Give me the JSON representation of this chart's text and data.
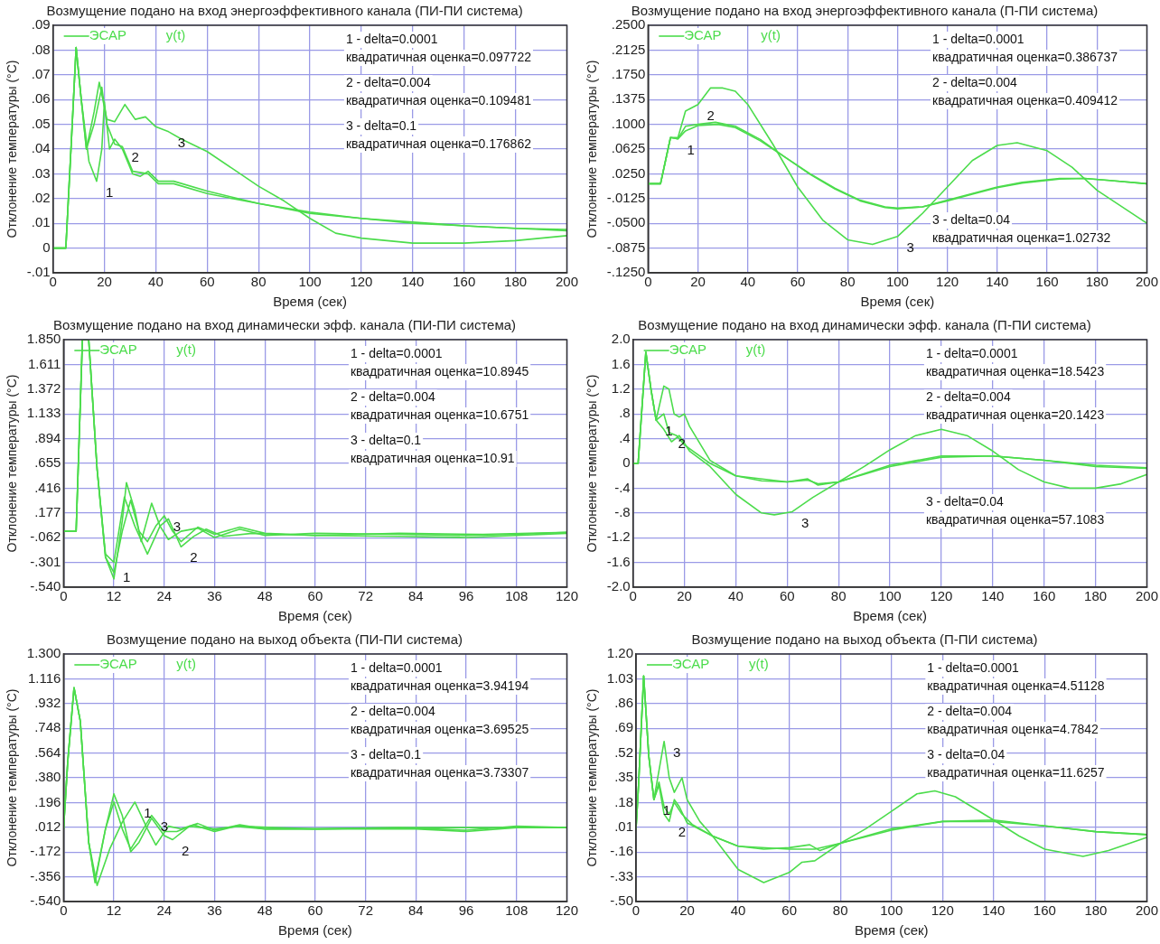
{
  "chart_data": [
    {
      "type": "line",
      "title": "Возмущение подано на вход энергоэффективного канала (ПИ-ПИ система)",
      "xlabel": "Время (сек)",
      "ylabel": "Отклонение температуры (°C)",
      "grid": true,
      "xlim": [
        0,
        200
      ],
      "xticks": [
        0,
        20,
        40,
        60,
        80,
        100,
        120,
        140,
        160,
        180,
        200
      ],
      "ylim": [
        -0.01,
        0.09
      ],
      "yticks": [
        {
          "value": -0.01,
          "label": "-.01"
        },
        0,
        {
          "value": 0.01,
          "label": ".01"
        },
        {
          "value": 0.02,
          "label": ".02"
        },
        {
          "value": 0.03,
          "label": ".03"
        },
        {
          "value": 0.04,
          "label": ".04"
        },
        {
          "value": 0.05,
          "label": ".05"
        },
        {
          "value": 0.06,
          "label": ".06"
        },
        {
          "value": 0.07,
          "label": ".07"
        },
        {
          "value": 0.08,
          "label": ".08"
        },
        {
          "value": 0.09,
          "label": ".09"
        }
      ],
      "series": [
        {
          "color": "#4cdc4c",
          "x": [
            0,
            5,
            7,
            9,
            11,
            14,
            17,
            19,
            20,
            22,
            24,
            27,
            31,
            34,
            37,
            41,
            47,
            60,
            80,
            100,
            120,
            140,
            160,
            180,
            200
          ],
          "values": [
            0,
            0,
            0.04,
            0.081,
            0.06,
            0.035,
            0.027,
            0.04,
            0.059,
            0.04,
            0.044,
            0.04,
            0.03,
            0.029,
            0.031,
            0.027,
            0.027,
            0.023,
            0.018,
            0.0145,
            0.012,
            0.0105,
            0.009,
            0.008,
            0.0075
          ]
        },
        {
          "color": "#4cdc4c",
          "x": [
            0,
            5,
            7,
            9,
            11,
            13,
            16,
            19,
            21,
            24,
            27,
            31,
            37,
            41,
            47,
            60,
            80,
            100,
            120,
            140,
            160,
            180,
            200
          ],
          "values": [
            0,
            0,
            0.04,
            0.081,
            0.06,
            0.04,
            0.05,
            0.065,
            0.05,
            0.042,
            0.041,
            0.031,
            0.03,
            0.026,
            0.026,
            0.022,
            0.018,
            0.014,
            0.012,
            0.01,
            0.009,
            0.008,
            0.007
          ]
        },
        {
          "color": "#4cdc4c",
          "x": [
            0,
            5,
            7,
            9,
            11,
            13,
            16,
            18,
            21,
            24,
            28,
            32,
            36,
            40,
            45,
            50,
            60,
            70,
            80,
            90,
            100,
            110,
            120,
            140,
            160,
            180,
            200
          ],
          "values": [
            0,
            0,
            0.04,
            0.081,
            0.06,
            0.04,
            0.055,
            0.067,
            0.052,
            0.051,
            0.058,
            0.052,
            0.053,
            0.049,
            0.047,
            0.044,
            0.039,
            0.032,
            0.025,
            0.019,
            0.012,
            0.006,
            0.004,
            0.002,
            0.002,
            0.003,
            0.005
          ]
        }
      ],
      "annotations": [
        "ЭСАР",
        "y(t)",
        "1 - delta=0.0001",
        "квадратичная оценка=0.097722",
        "2 - delta=0.004",
        "квадратичная оценка=0.109481",
        "3 - delta=0.1",
        "квадратичная оценка=0.176862",
        {
          "text": "1",
          "x": 17,
          "y": 0.027
        },
        {
          "text": "2",
          "x": 27,
          "y": 0.041
        },
        {
          "text": "3",
          "x": 45,
          "y": 0.047
        }
      ]
    },
    {
      "type": "line",
      "title": "Возмущение подано на вход энергоэффективного канала (П-ПИ система)",
      "xlabel": "Время (сек)",
      "ylabel": "Отклонение температуры (°C)",
      "grid": true,
      "xlim": [
        0,
        200
      ],
      "xticks": [
        0,
        20,
        40,
        60,
        80,
        100,
        120,
        140,
        160,
        180,
        200
      ],
      "ylim": [
        -0.125,
        0.25
      ],
      "yticks": [
        {
          "value": -0.125,
          "label": "-.1250"
        },
        {
          "value": -0.0875,
          "label": "-.0875"
        },
        {
          "value": -0.05,
          "label": "-.0500"
        },
        {
          "value": -0.0125,
          "label": "-.0125"
        },
        {
          "value": 0.025,
          "label": ".0250"
        },
        {
          "value": 0.0625,
          "label": ".0625"
        },
        {
          "value": 0.1,
          "label": ".1000"
        },
        {
          "value": 0.1375,
          "label": ".1375"
        },
        {
          "value": 0.175,
          "label": ".1750"
        },
        {
          "value": 0.2125,
          "label": ".2125"
        },
        {
          "value": 0.25,
          "label": ".2500"
        }
      ],
      "series": [
        {
          "color": "#4cdc4c",
          "x": [
            0,
            5,
            9,
            12,
            15,
            20,
            28,
            35,
            45,
            55,
            65,
            75,
            85,
            95,
            100,
            110,
            120,
            130,
            140,
            150,
            165,
            175,
            185,
            200
          ],
          "values": [
            0.01,
            0.01,
            0.08,
            0.078,
            0.09,
            0.098,
            0.1,
            0.095,
            0.075,
            0.05,
            0.025,
            0.003,
            -0.015,
            -0.025,
            -0.027,
            -0.025,
            -0.015,
            -0.005,
            0.005,
            0.012,
            0.018,
            0.018,
            0.015,
            0.01
          ]
        },
        {
          "color": "#4cdc4c",
          "x": [
            0,
            5,
            9,
            12,
            15,
            20,
            27,
            35,
            45,
            55,
            65,
            75,
            85,
            95,
            100,
            110,
            120,
            130,
            140,
            150,
            165,
            175,
            185,
            200
          ],
          "values": [
            0.01,
            0.01,
            0.08,
            0.078,
            0.097,
            0.1,
            0.103,
            0.097,
            0.077,
            0.05,
            0.024,
            0.002,
            -0.016,
            -0.026,
            -0.028,
            -0.025,
            -0.016,
            -0.006,
            0.004,
            0.011,
            0.017,
            0.018,
            0.015,
            0.01
          ]
        },
        {
          "color": "#4cdc4c",
          "x": [
            0,
            5,
            9,
            12,
            15,
            20,
            25,
            30,
            35,
            40,
            50,
            60,
            70,
            80,
            90,
            100,
            110,
            120,
            130,
            140,
            148,
            160,
            170,
            180,
            190,
            200
          ],
          "values": [
            0.01,
            0.01,
            0.08,
            0.08,
            0.12,
            0.13,
            0.155,
            0.155,
            0.15,
            0.13,
            0.07,
            0.005,
            -0.045,
            -0.075,
            -0.082,
            -0.07,
            -0.035,
            0.005,
            0.045,
            0.068,
            0.072,
            0.06,
            0.035,
            0,
            -0.025,
            -0.05
          ]
        }
      ],
      "annotations": [
        "ЭСАР",
        "y(t)",
        "1 - delta=0.0001",
        "квадратичная оценка=0.386737",
        "2 - delta=0.004",
        "квадратичная оценка=0.409412",
        "3 - delta=0.04",
        "квадратичная оценка=1.02732",
        {
          "text": "1",
          "x": 12,
          "y": 0.078
        },
        {
          "text": "2",
          "x": 20,
          "y": 0.13
        },
        {
          "text": "3",
          "x": 100,
          "y": -0.07
        }
      ]
    },
    {
      "type": "line",
      "title": "Возмущение подано на вход динамически эфф. канала (ПИ-ПИ система)",
      "xlabel": "Время (сек)",
      "ylabel": "Отклонение температуры (°C)",
      "grid": true,
      "xlim": [
        0,
        120
      ],
      "xticks": [
        0,
        12,
        24,
        36,
        48,
        60,
        72,
        84,
        96,
        108,
        120
      ],
      "ylim": [
        -0.54,
        1.85
      ],
      "yticks": [
        {
          "value": -0.54,
          "label": "-.540"
        },
        {
          "value": -0.301,
          "label": "-.301"
        },
        {
          "value": -0.062,
          "label": "-.062"
        },
        {
          "value": 0.177,
          "label": ".177"
        },
        {
          "value": 0.416,
          "label": ".416"
        },
        {
          "value": 0.655,
          "label": ".655"
        },
        {
          "value": 0.894,
          "label": ".894"
        },
        {
          "value": 1.133,
          "label": "1.133"
        },
        {
          "value": 1.372,
          "label": "1.372"
        },
        {
          "value": 1.611,
          "label": "1.611"
        },
        {
          "value": 1.85,
          "label": "1.850"
        }
      ],
      "series": [
        {
          "color": "#4cdc4c",
          "x": [
            0,
            3,
            4.5,
            6,
            8,
            10,
            12,
            14,
            15,
            17,
            18.5,
            21,
            23,
            25,
            28,
            32,
            36,
            42,
            48,
            60,
            80,
            96,
            108,
            120
          ],
          "values": [
            0,
            0,
            1.85,
            1.85,
            0.6,
            -0.25,
            -0.46,
            0.1,
            0.47,
            0.2,
            -0.1,
            0.27,
            0.05,
            -0.08,
            0,
            0.03,
            -0.06,
            0.02,
            -0.04,
            -0.02,
            -0.03,
            -0.04,
            -0.03,
            -0.01
          ]
        },
        {
          "color": "#4cdc4c",
          "x": [
            0,
            3,
            4.5,
            6,
            8,
            10,
            12,
            14.5,
            17,
            20,
            23,
            25,
            28,
            31,
            34,
            38,
            45,
            60,
            80,
            96,
            108,
            120
          ],
          "values": [
            0,
            0,
            1.85,
            1.85,
            0.6,
            -0.22,
            -0.3,
            0.33,
            0.05,
            -0.22,
            0.05,
            0.12,
            -0.15,
            -0.05,
            0.02,
            -0.05,
            -0.02,
            -0.04,
            -0.05,
            -0.06,
            -0.04,
            -0.02
          ]
        },
        {
          "color": "#4cdc4c",
          "x": [
            0,
            3,
            4.5,
            6,
            8,
            10,
            12,
            14,
            16,
            18,
            20,
            22,
            24,
            26,
            28,
            32,
            36,
            42,
            48,
            60,
            80,
            100,
            120
          ],
          "values": [
            0,
            0,
            1.85,
            1.85,
            0.6,
            -0.25,
            -0.4,
            0,
            0.3,
            0,
            -0.1,
            0.05,
            0.15,
            0,
            -0.1,
            0.04,
            -0.03,
            0.04,
            -0.02,
            -0.04,
            -0.02,
            -0.03,
            -0.01
          ]
        }
      ],
      "annotations": [
        "ЭСАР",
        "y(t)",
        "1 - delta=0.0001",
        "квадратичная оценка=10.8945",
        "2 - delta=0.004",
        "квадратичная оценка=10.6751",
        "3 - delta=0.1",
        "квадратичная оценка=10.91",
        {
          "text": "1",
          "x": 12,
          "y": -0.46
        },
        {
          "text": "2",
          "x": 28,
          "y": -0.15
        },
        {
          "text": "3",
          "x": 24,
          "y": 0.15
        }
      ]
    },
    {
      "type": "line",
      "title": "Возмущение подано на вход динамически эфф. канала (П-ПИ система)",
      "xlabel": "Время (сек)",
      "ylabel": "Отклонение температуры (°C)",
      "grid": true,
      "xlim": [
        0,
        200
      ],
      "xticks": [
        0,
        20,
        40,
        60,
        80,
        100,
        120,
        140,
        160,
        180,
        200
      ],
      "ylim": [
        -2,
        2
      ],
      "yticks": [
        {
          "value": -2,
          "label": "-2.0"
        },
        {
          "value": -1.6,
          "label": "-1.6"
        },
        {
          "value": -1.2,
          "label": "-1.2"
        },
        {
          "value": -0.8,
          "label": "-.8"
        },
        {
          "value": -0.4,
          "label": "-.4"
        },
        0,
        {
          "value": 0.4,
          "label": ".4"
        },
        {
          "value": 0.8,
          "label": ".8"
        },
        {
          "value": 1.2,
          "label": "1.2"
        },
        {
          "value": 1.6,
          "label": "1.6"
        },
        {
          "value": 2,
          "label": "2.0"
        }
      ],
      "series": [
        {
          "color": "#4cdc4c",
          "x": [
            0,
            2,
            5,
            7,
            9,
            12,
            14,
            17,
            20,
            30,
            40,
            50,
            60,
            68,
            72,
            80,
            100,
            120,
            140,
            160,
            180,
            200
          ],
          "values": [
            0,
            0,
            1.8,
            1.2,
            0.7,
            0.8,
            0.5,
            0.45,
            0.3,
            0,
            -0.2,
            -0.28,
            -0.3,
            -0.25,
            -0.35,
            -0.3,
            -0.05,
            0.1,
            0.12,
            0.05,
            -0.05,
            -0.08
          ]
        },
        {
          "color": "#4cdc4c",
          "x": [
            0,
            2,
            5,
            7,
            9,
            12,
            14,
            16,
            18,
            20,
            22,
            30,
            40,
            60,
            68,
            72,
            80,
            100,
            120,
            140,
            160,
            180,
            200
          ],
          "values": [
            0,
            0,
            1.8,
            1.2,
            0.7,
            1.25,
            1.2,
            0.8,
            0.75,
            0.8,
            0.6,
            0.05,
            -0.2,
            -0.3,
            -0.27,
            -0.33,
            -0.3,
            -0.03,
            0.12,
            0.12,
            0.05,
            -0.03,
            -0.07
          ]
        },
        {
          "color": "#4cdc4c",
          "x": [
            0,
            2,
            5,
            7,
            9,
            12,
            15,
            18,
            22,
            30,
            40,
            50,
            55,
            62,
            70,
            80,
            90,
            100,
            110,
            120,
            130,
            140,
            150,
            160,
            170,
            180,
            190,
            200
          ],
          "values": [
            0,
            0,
            1.8,
            1.2,
            0.7,
            0.55,
            0.35,
            0.45,
            0.2,
            -0.05,
            -0.5,
            -0.8,
            -0.83,
            -0.78,
            -0.55,
            -0.3,
            -0.05,
            0.22,
            0.45,
            0.55,
            0.45,
            0.2,
            -0.1,
            -0.3,
            -0.4,
            -0.4,
            -0.33,
            -0.18
          ]
        }
      ],
      "annotations": [
        "ЭСАР",
        "y(t)",
        "1 - delta=0.0001",
        "квадратичная оценка=18.5423",
        "2 - delta=0.004",
        "квадратичная оценка=20.1423",
        "3 - delta=0.04",
        "квадратичная оценка=57.1083",
        {
          "text": "1",
          "x": 9,
          "y": 0.7
        },
        {
          "text": "2",
          "x": 14,
          "y": 0.5
        },
        {
          "text": "3",
          "x": 62,
          "y": -0.78
        }
      ]
    },
    {
      "type": "line",
      "title": "Возмущение подано на выход объекта (ПИ-ПИ система)",
      "xlabel": "Время (сек)",
      "ylabel": "Отклонение температуры (°C)",
      "grid": true,
      "xlim": [
        0,
        120
      ],
      "xticks": [
        0,
        12,
        24,
        36,
        48,
        60,
        72,
        84,
        96,
        108,
        120
      ],
      "ylim": [
        -0.54,
        1.3
      ],
      "yticks": [
        {
          "value": -0.54,
          "label": "-.540"
        },
        {
          "value": -0.356,
          "label": "-.356"
        },
        {
          "value": -0.172,
          "label": "-.172"
        },
        {
          "value": 0.012,
          "label": ".012"
        },
        {
          "value": 0.196,
          "label": ".196"
        },
        {
          "value": 0.38,
          "label": ".380"
        },
        {
          "value": 0.564,
          "label": ".564"
        },
        {
          "value": 0.748,
          "label": ".748"
        },
        {
          "value": 0.932,
          "label": ".932"
        },
        {
          "value": 1.116,
          "label": "1.116"
        },
        {
          "value": 1.3,
          "label": "1.300"
        }
      ],
      "series": [
        {
          "color": "#4cdc4c",
          "x": [
            0,
            1,
            2.5,
            4,
            6,
            8,
            11,
            14,
            17,
            20,
            22,
            25,
            28,
            32,
            36,
            42,
            48,
            60,
            80,
            96,
            108,
            120
          ],
          "values": [
            0,
            0.5,
            1.05,
            0.8,
            -0.1,
            -0.42,
            -0.15,
            0.05,
            0.2,
            0,
            -0.12,
            0.02,
            0,
            0.04,
            -0.01,
            0.03,
            0,
            0,
            0.01,
            -0.01,
            0.02,
            0.01
          ]
        },
        {
          "color": "#4cdc4c",
          "x": [
            0,
            1,
            2.5,
            4,
            6,
            7.5,
            10,
            12,
            14,
            16,
            18,
            21,
            24,
            26,
            30,
            36,
            42,
            50,
            60,
            84,
            96,
            108,
            120
          ],
          "values": [
            0,
            0.5,
            1.05,
            0.8,
            -0.1,
            -0.4,
            0,
            0.26,
            0.1,
            -0.17,
            -0.1,
            0.08,
            -0.05,
            -0.08,
            0.02,
            0,
            0.02,
            0.01,
            0,
            0,
            -0.02,
            0.01,
            0.01
          ]
        },
        {
          "color": "#4cdc4c",
          "x": [
            0,
            1,
            2.5,
            4,
            6,
            7.5,
            10,
            12,
            14,
            16,
            19,
            21,
            24,
            27,
            31,
            36,
            41,
            48,
            60,
            84,
            108,
            120
          ],
          "values": [
            0,
            0.5,
            1.05,
            0.8,
            -0.1,
            -0.38,
            0,
            0.2,
            0,
            -0.15,
            0,
            0.1,
            -0.02,
            -0.02,
            0.03,
            -0.02,
            0.02,
            0,
            0,
            0.01,
            0.01,
            0.01
          ]
        }
      ],
      "annotations": [
        "ЭСАР",
        "y(t)",
        "1 - delta=0.0001",
        "квадратичная оценка=3.94194",
        "2 - delta=0.004",
        "квадратичная оценка=3.69525",
        "3 - delta=0.1",
        "квадратичная оценка=3.73307",
        {
          "text": "1",
          "x": 17,
          "y": 0.2
        },
        {
          "text": "2",
          "x": 26,
          "y": -0.08
        },
        {
          "text": "3",
          "x": 21,
          "y": 0.1
        }
      ]
    },
    {
      "type": "line",
      "title": "Возмущение подано на выход объекта (П-ПИ система)",
      "xlabel": "Время (сек)",
      "ylabel": "Отклонение температуры (°C)",
      "grid": true,
      "xlim": [
        0,
        200
      ],
      "xticks": [
        0,
        20,
        40,
        60,
        80,
        100,
        120,
        140,
        160,
        180,
        200
      ],
      "ylim": [
        -0.5,
        1.2
      ],
      "yticks": [
        {
          "value": -0.5,
          "label": "-.50"
        },
        {
          "value": -0.33,
          "label": "-.33"
        },
        {
          "value": -0.16,
          "label": "-.16"
        },
        {
          "value": 0.01,
          "label": ".01"
        },
        {
          "value": 0.18,
          "label": ".18"
        },
        {
          "value": 0.35,
          "label": ".35"
        },
        {
          "value": 0.52,
          "label": ".52"
        },
        {
          "value": 0.69,
          "label": ".69"
        },
        {
          "value": 0.86,
          "label": ".86"
        },
        {
          "value": 1.03,
          "label": "1.03"
        },
        {
          "value": 1.2,
          "label": "1.20"
        }
      ],
      "series": [
        {
          "color": "#4cdc4c",
          "x": [
            0,
            1,
            3,
            5,
            7,
            9,
            11,
            13,
            15,
            18,
            22,
            30,
            40,
            50,
            60,
            68,
            72,
            80,
            100,
            120,
            140,
            160,
            180,
            200
          ],
          "values": [
            0,
            0.3,
            1.05,
            0.5,
            0.2,
            0.32,
            0.15,
            0.1,
            0.18,
            0.1,
            0.03,
            -0.05,
            -0.12,
            -0.14,
            -0.13,
            -0.11,
            -0.15,
            -0.1,
            -0.01,
            0.05,
            0.06,
            0.02,
            -0.02,
            -0.04
          ]
        },
        {
          "color": "#4cdc4c",
          "x": [
            0,
            1,
            3,
            5,
            7,
            9,
            11,
            13,
            15,
            17,
            20,
            30,
            40,
            60,
            70,
            80,
            100,
            120,
            140,
            160,
            180,
            200
          ],
          "values": [
            0,
            0.3,
            1.05,
            0.5,
            0.2,
            0.3,
            0.1,
            0.05,
            0.2,
            0.15,
            0.04,
            -0.05,
            -0.12,
            -0.14,
            -0.14,
            -0.1,
            0,
            0.05,
            0.05,
            0.02,
            -0.02,
            -0.04
          ]
        },
        {
          "color": "#4cdc4c",
          "x": [
            0,
            1,
            3,
            5,
            7,
            9,
            11,
            13,
            15,
            18,
            20,
            25,
            30,
            40,
            50,
            60,
            65,
            70,
            80,
            90,
            100,
            110,
            117,
            125,
            140,
            150,
            160,
            175,
            185,
            200
          ],
          "values": [
            0,
            0.3,
            1.05,
            0.5,
            0.2,
            0.4,
            0.6,
            0.35,
            0.25,
            0.35,
            0.2,
            0.05,
            -0.05,
            -0.28,
            -0.37,
            -0.3,
            -0.23,
            -0.22,
            -0.1,
            0,
            0.12,
            0.24,
            0.26,
            0.22,
            0.06,
            -0.05,
            -0.14,
            -0.19,
            -0.15,
            -0.06
          ]
        }
      ],
      "annotations": [
        "ЭСАР",
        "y(t)",
        "1 - delta=0.0001",
        "квадратичная оценка=4.51128",
        "2 - delta=0.004",
        "квадратичная оценка=4.7842",
        "3 - delta=0.04",
        "квадратичная оценка=11.6257",
        {
          "text": "1",
          "x": 7,
          "y": 0.2
        },
        {
          "text": "2",
          "x": 13,
          "y": 0.05
        },
        {
          "text": "3",
          "x": 11,
          "y": 0.6
        }
      ]
    }
  ]
}
